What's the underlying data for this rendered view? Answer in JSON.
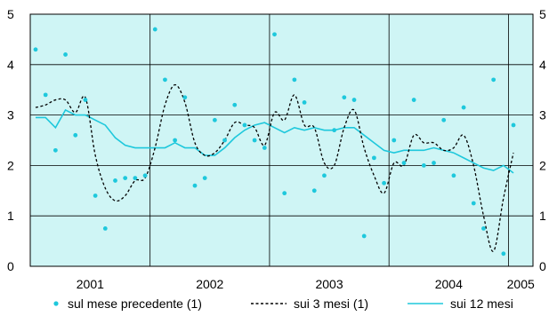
{
  "chart_data": {
    "type": "line",
    "title": "",
    "xlabel": "",
    "ylabel": "",
    "ylim": [
      0,
      5
    ],
    "yticks_left": [
      "0",
      "1",
      "2",
      "3",
      "4",
      "5"
    ],
    "yticks_right": [
      "0",
      "1",
      "2",
      "3",
      "4",
      "5"
    ],
    "year_labels": [
      "2001",
      "2002",
      "2003",
      "2004",
      "2005"
    ],
    "x_start": "2001-01",
    "x_end": "2005-02",
    "grid": "horizontal lines at each integer, vertical lines at year boundaries",
    "background_color": "#cff5f5",
    "legend_position": "bottom",
    "series": [
      {
        "name": "sul mese precedente (1)",
        "style": "markers",
        "color": "#1ec8dc",
        "values": [
          4.3,
          3.4,
          2.3,
          4.2,
          2.6,
          3.3,
          1.4,
          0.75,
          1.7,
          1.75,
          1.75,
          1.8,
          4.7,
          3.7,
          2.5,
          3.35,
          1.6,
          1.75,
          2.9,
          2.5,
          3.2,
          2.8,
          2.5,
          2.35,
          4.6,
          1.45,
          3.7,
          3.25,
          1.5,
          1.8,
          2.7,
          3.35,
          3.3,
          0.6,
          2.15,
          1.65,
          2.5,
          2.05,
          3.3,
          2.0,
          2.05,
          2.9,
          1.8,
          3.15,
          1.25,
          0.75,
          3.7,
          0.25,
          2.8
        ]
      },
      {
        "name": "sui 3 mesi (1)",
        "style": "dashed",
        "color": "#000000",
        "values": [
          3.15,
          3.2,
          3.3,
          3.3,
          3.05,
          3.35,
          2.2,
          1.55,
          1.3,
          1.4,
          1.7,
          1.75,
          2.35,
          3.2,
          3.6,
          3.25,
          2.45,
          2.2,
          2.25,
          2.5,
          2.85,
          2.8,
          2.75,
          2.4,
          3.05,
          2.9,
          3.4,
          2.8,
          2.75,
          2.05,
          2.0,
          2.75,
          3.1,
          2.35,
          1.8,
          1.45,
          2.05,
          2.0,
          2.6,
          2.45,
          2.45,
          2.3,
          2.35,
          2.6,
          2.0,
          1.0,
          0.3,
          1.35,
          2.25
        ]
      },
      {
        "name": "sui 12 mesi",
        "style": "solid",
        "color": "#1ec8dc",
        "values": [
          2.95,
          2.95,
          2.75,
          3.1,
          3.0,
          3.0,
          2.9,
          2.8,
          2.55,
          2.4,
          2.35,
          2.35,
          2.35,
          2.35,
          2.45,
          2.35,
          2.35,
          2.2,
          2.2,
          2.35,
          2.55,
          2.7,
          2.8,
          2.85,
          2.75,
          2.65,
          2.75,
          2.7,
          2.75,
          2.7,
          2.7,
          2.75,
          2.75,
          2.6,
          2.45,
          2.3,
          2.25,
          2.3,
          2.3,
          2.3,
          2.35,
          2.3,
          2.25,
          2.15,
          2.05,
          1.95,
          1.9,
          2.0,
          1.85
        ]
      }
    ]
  }
}
